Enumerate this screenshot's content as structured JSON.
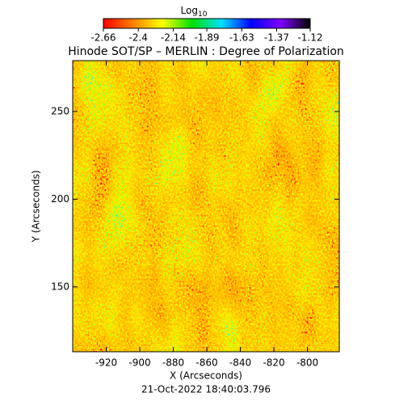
{
  "chart_data": {
    "type": "heatmap",
    "title": "Hinode SOT/SP – MERLIN : Degree of Polarization",
    "colorbar_label": "Log",
    "colorbar_label_sub": "10",
    "colorbar_lim": [
      -2.66,
      -1.12
    ],
    "colorbar_ticks": [
      -2.66,
      -2.4,
      -2.14,
      -1.89,
      -1.63,
      -1.37,
      -1.12
    ],
    "colormap": [
      "#ff0000",
      "#ff8000",
      "#ffff00",
      "#00e000",
      "#00e0ff",
      "#0000ff",
      "#8000ff",
      "#000000"
    ],
    "x_label": "X (Arcseconds)",
    "y_label": "Y (Arcseconds)",
    "xlim": [
      -940,
      -781
    ],
    "xticks": [
      -920,
      -900,
      -880,
      -860,
      -840,
      -820,
      -800
    ],
    "ylim": [
      113,
      279
    ],
    "yticks": [
      150,
      200,
      250
    ],
    "timestamp": "21-Oct-2022 18:40:03.796"
  }
}
